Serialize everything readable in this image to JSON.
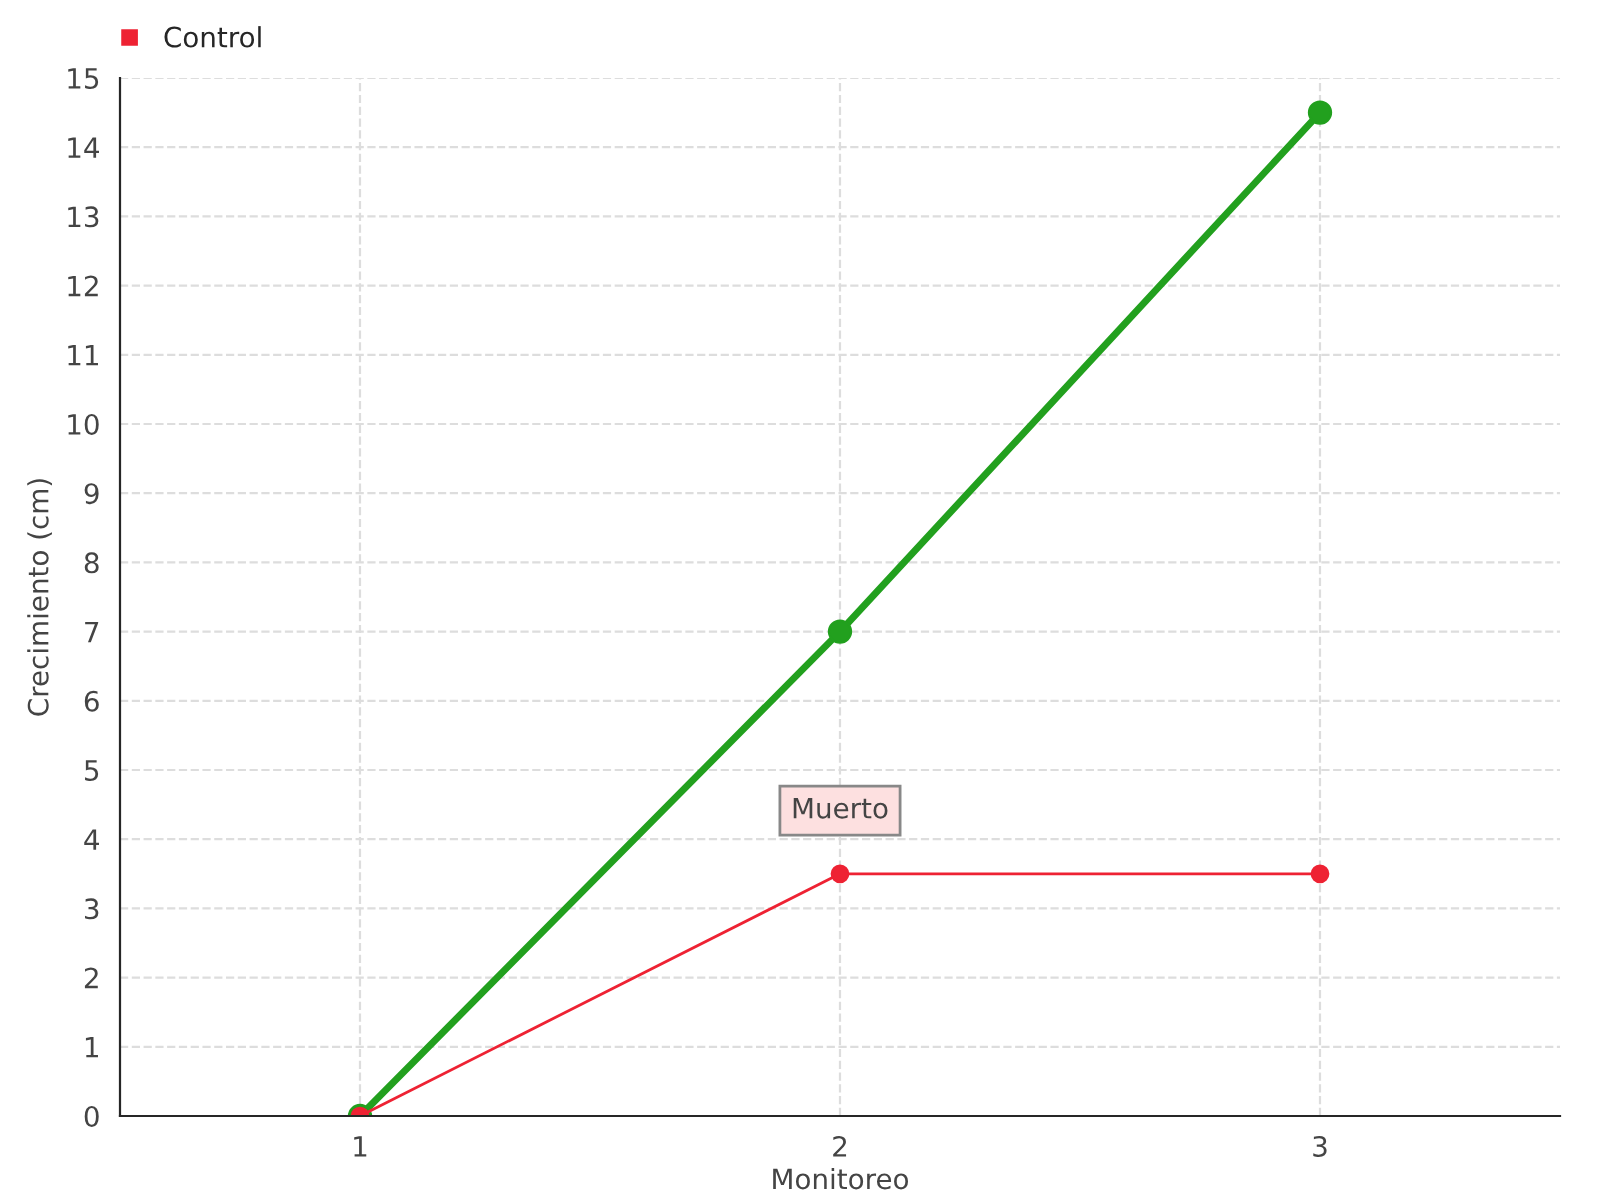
{
  "chart_data": {
    "type": "line",
    "xlabel": "Monitoreo",
    "ylabel": "Crecimiento (cm)",
    "x": [
      1,
      2,
      3
    ],
    "xlim": [
      0.5,
      3.5
    ],
    "xticks": [
      1,
      2,
      3
    ],
    "ylim": [
      0,
      15
    ],
    "yticks": [
      0,
      1,
      2,
      3,
      4,
      5,
      6,
      7,
      8,
      9,
      10,
      11,
      12,
      13,
      14,
      15
    ],
    "series": [
      {
        "color": "#22a01e",
        "values": [
          0,
          7,
          14.5
        ]
      },
      {
        "name": "Control",
        "color": "#ee2233",
        "values": [
          0,
          3.5,
          3.5
        ]
      }
    ],
    "annotations": [
      {
        "text": "Muerto",
        "x": 2,
        "y": 3.5
      }
    ],
    "grid": true,
    "legend": "top left",
    "marker": "circle",
    "line_style": "solid"
  }
}
